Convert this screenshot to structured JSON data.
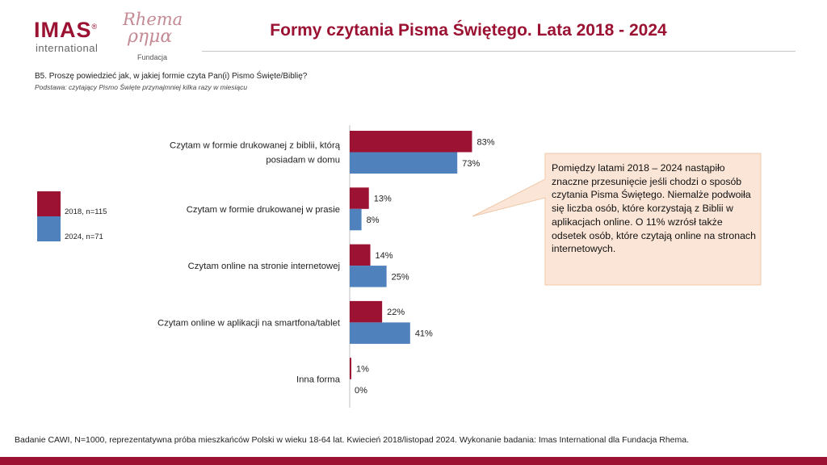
{
  "header": {
    "logo_imas": "IMAS",
    "logo_imas_mark": "®",
    "logo_international": "international",
    "logo_rhema": "Rhema",
    "logo_rhema_greek": "ρημα",
    "logo_fundacja": "Fundacja",
    "title": "Formy czytania Pisma Świętego. Lata 2018 - 2024"
  },
  "question": "B5. Proszę powiedzieć jak, w jakiej formie czyta Pan(i) Pismo Święte/Biblię?",
  "basis": "Podstawa: czytający Pismo Święte przynajmniej kilka razy w miesiącu",
  "colors": {
    "series_2018": "#9b1233",
    "series_2024": "#4f81bd",
    "callout_bg": "#fbe5d6",
    "brand": "#9b1233"
  },
  "chart_data": {
    "type": "bar",
    "orientation": "horizontal",
    "categories": [
      [
        "Czytam w formie drukowanej z biblii, którą",
        "posiadam w domu"
      ],
      [
        "Czytam w formie drukowanej w prasie"
      ],
      [
        "Czytam online na stronie internetowej"
      ],
      [
        "Czytam online w aplikacji na smartfona/tablet"
      ],
      [
        "Inna forma"
      ]
    ],
    "series": [
      {
        "name": "2018, n=115",
        "values": [
          83,
          13,
          14,
          22,
          1
        ],
        "labels": [
          "83%",
          "13%",
          "14%",
          "22%",
          "1%"
        ]
      },
      {
        "name": "2024, n=71",
        "values": [
          73,
          8,
          25,
          41,
          0
        ],
        "labels": [
          "73%",
          "8%",
          "25%",
          "41%",
          "0%"
        ]
      }
    ],
    "xlim": [
      0,
      100
    ],
    "legend": "left"
  },
  "callout": "Pomiędzy latami 2018 – 2024 nastąpiło znaczne przesunięcie jeśli chodzi o sposób czytania Pisma Świętego. Niemalże podwoiła się liczba osób, które korzystają z Biblii w aplikacjach online. O 11% wzrósł także odsetek osób, które czytają online na stronach internetowych.",
  "footer": "Badanie CAWI, N=1000, reprezentatywna próba mieszkańców Polski w wieku 18-64 lat. Kwiecień 2018/listopad 2024. Wykonanie badania: Imas International dla Fundacja Rhema."
}
